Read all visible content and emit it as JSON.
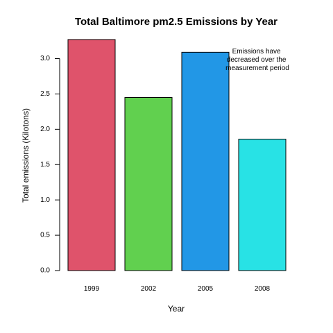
{
  "chart_data": {
    "type": "bar",
    "title": "Total Baltimore pm2.5 Emissions by Year",
    "xlabel": "Year",
    "ylabel": "Total emissions (Kilotons)",
    "categories": [
      "1999",
      "2002",
      "2005",
      "2008"
    ],
    "values": [
      3.27,
      2.45,
      3.09,
      1.86
    ],
    "colors": [
      "#DF536B",
      "#61D04F",
      "#2297E6",
      "#28E2E5"
    ],
    "ylim": [
      0,
      3.27
    ],
    "yticks": [
      "0.0",
      "0.5",
      "1.0",
      "1.5",
      "2.0",
      "2.5",
      "3.0"
    ],
    "grid": false,
    "legend": "none",
    "annotation": [
      "Emissions have",
      "decreased over the",
      "measurement period"
    ]
  }
}
